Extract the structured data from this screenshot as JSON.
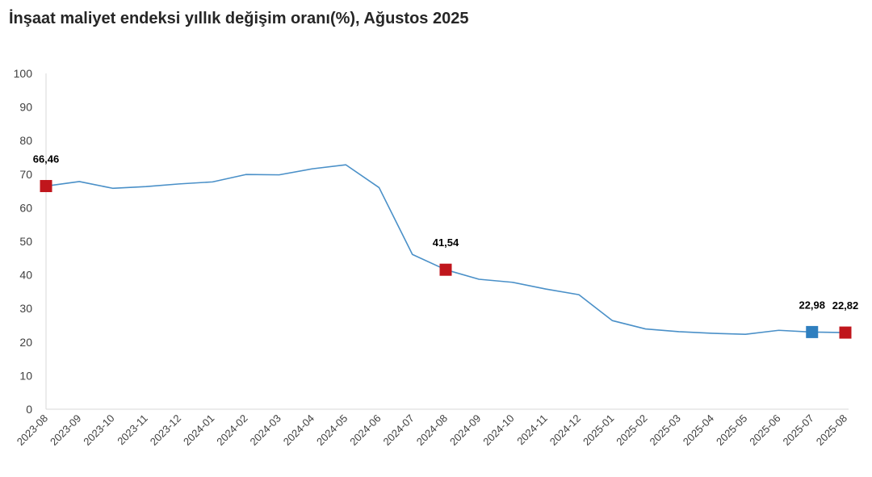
{
  "chart_data": {
    "type": "line",
    "title": "İnşaat maliyet endeksi yıllık değişim oranı(%), Ağustos 2025",
    "xlabel": "",
    "ylabel": "",
    "ylim": [
      0,
      100
    ],
    "yticks": [
      0,
      10,
      20,
      30,
      40,
      50,
      60,
      70,
      80,
      90,
      100
    ],
    "grid": false,
    "categories": [
      "2023-08",
      "2023-09",
      "2023-10",
      "2023-11",
      "2023-12",
      "2024-01",
      "2024-02",
      "2024-03",
      "2024-04",
      "2024-05",
      "2024-06",
      "2024-07",
      "2024-08",
      "2024-09",
      "2024-10",
      "2024-11",
      "2024-12",
      "2025-01",
      "2025-02",
      "2025-03",
      "2025-04",
      "2025-05",
      "2025-06",
      "2025-07",
      "2025-08"
    ],
    "series": [
      {
        "values": [
          66.46,
          67.8,
          65.8,
          66.3,
          67.1,
          67.7,
          69.9,
          69.8,
          71.6,
          72.8,
          66.0,
          46.1,
          41.54,
          38.7,
          37.8,
          35.8,
          34.1,
          26.4,
          23.9,
          23.1,
          22.6,
          22.3,
          23.5,
          22.98,
          22.82
        ]
      }
    ],
    "annotations": [
      {
        "category": "2023-08",
        "label": "66,46",
        "marker": "square"
      },
      {
        "category": "2024-08",
        "label": "41,54",
        "marker": "square"
      },
      {
        "category": "2025-07",
        "label": "22,98",
        "marker": "square"
      },
      {
        "category": "2025-08",
        "label": "22,82",
        "marker": "square"
      }
    ],
    "colors": {
      "line": "#4a90c8",
      "highlight": "#c0161c",
      "previous": "#2f7fbf",
      "axis": "#d9d9d9"
    },
    "marker_colors": {
      "2023-08": "#c0161c",
      "2024-08": "#c0161c",
      "2025-07": "#2f7fbf",
      "2025-08": "#c0161c"
    }
  }
}
